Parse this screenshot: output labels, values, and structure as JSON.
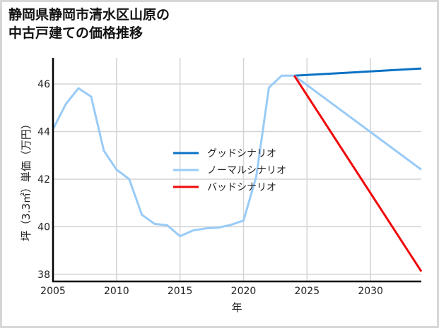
{
  "chart_data": {
    "type": "line",
    "title": "静岡県静岡市清水区山原の\n中古戸建ての価格推移",
    "xlabel": "年",
    "ylabel": "坪（3.3㎡）単価（万円）",
    "xlim": [
      2005,
      2034
    ],
    "ylim": [
      37.7,
      47.1
    ],
    "x_ticks": [
      2005,
      2010,
      2015,
      2020,
      2025,
      2030
    ],
    "y_ticks": [
      38,
      40,
      42,
      44,
      46
    ],
    "grid": true,
    "legend_position": "center",
    "historical": {
      "x": [
        2005,
        2006,
        2007,
        2008,
        2009,
        2010,
        2011,
        2012,
        2013,
        2014,
        2015,
        2016,
        2017,
        2018,
        2019,
        2020,
        2021,
        2022,
        2023,
        2024
      ],
      "values": [
        44.1,
        45.15,
        45.82,
        45.47,
        43.2,
        42.4,
        42.0,
        40.5,
        40.12,
        40.06,
        39.6,
        39.84,
        39.93,
        39.96,
        40.08,
        40.26,
        42.1,
        45.85,
        46.35,
        46.35
      ]
    },
    "series": [
      {
        "name": "グッドシナリオ",
        "color": "#0a72c4",
        "x": [
          2024,
          2034
        ],
        "values": [
          46.35,
          46.65
        ]
      },
      {
        "name": "ノーマルシナリオ",
        "color": "#99cbf7",
        "x": [
          2024,
          2034
        ],
        "values": [
          46.35,
          42.4
        ]
      },
      {
        "name": "バッドシナリオ",
        "color": "#f00a0a",
        "x": [
          2024,
          2034
        ],
        "values": [
          46.35,
          38.12
        ]
      }
    ],
    "historical_color": "#99cbf7"
  }
}
